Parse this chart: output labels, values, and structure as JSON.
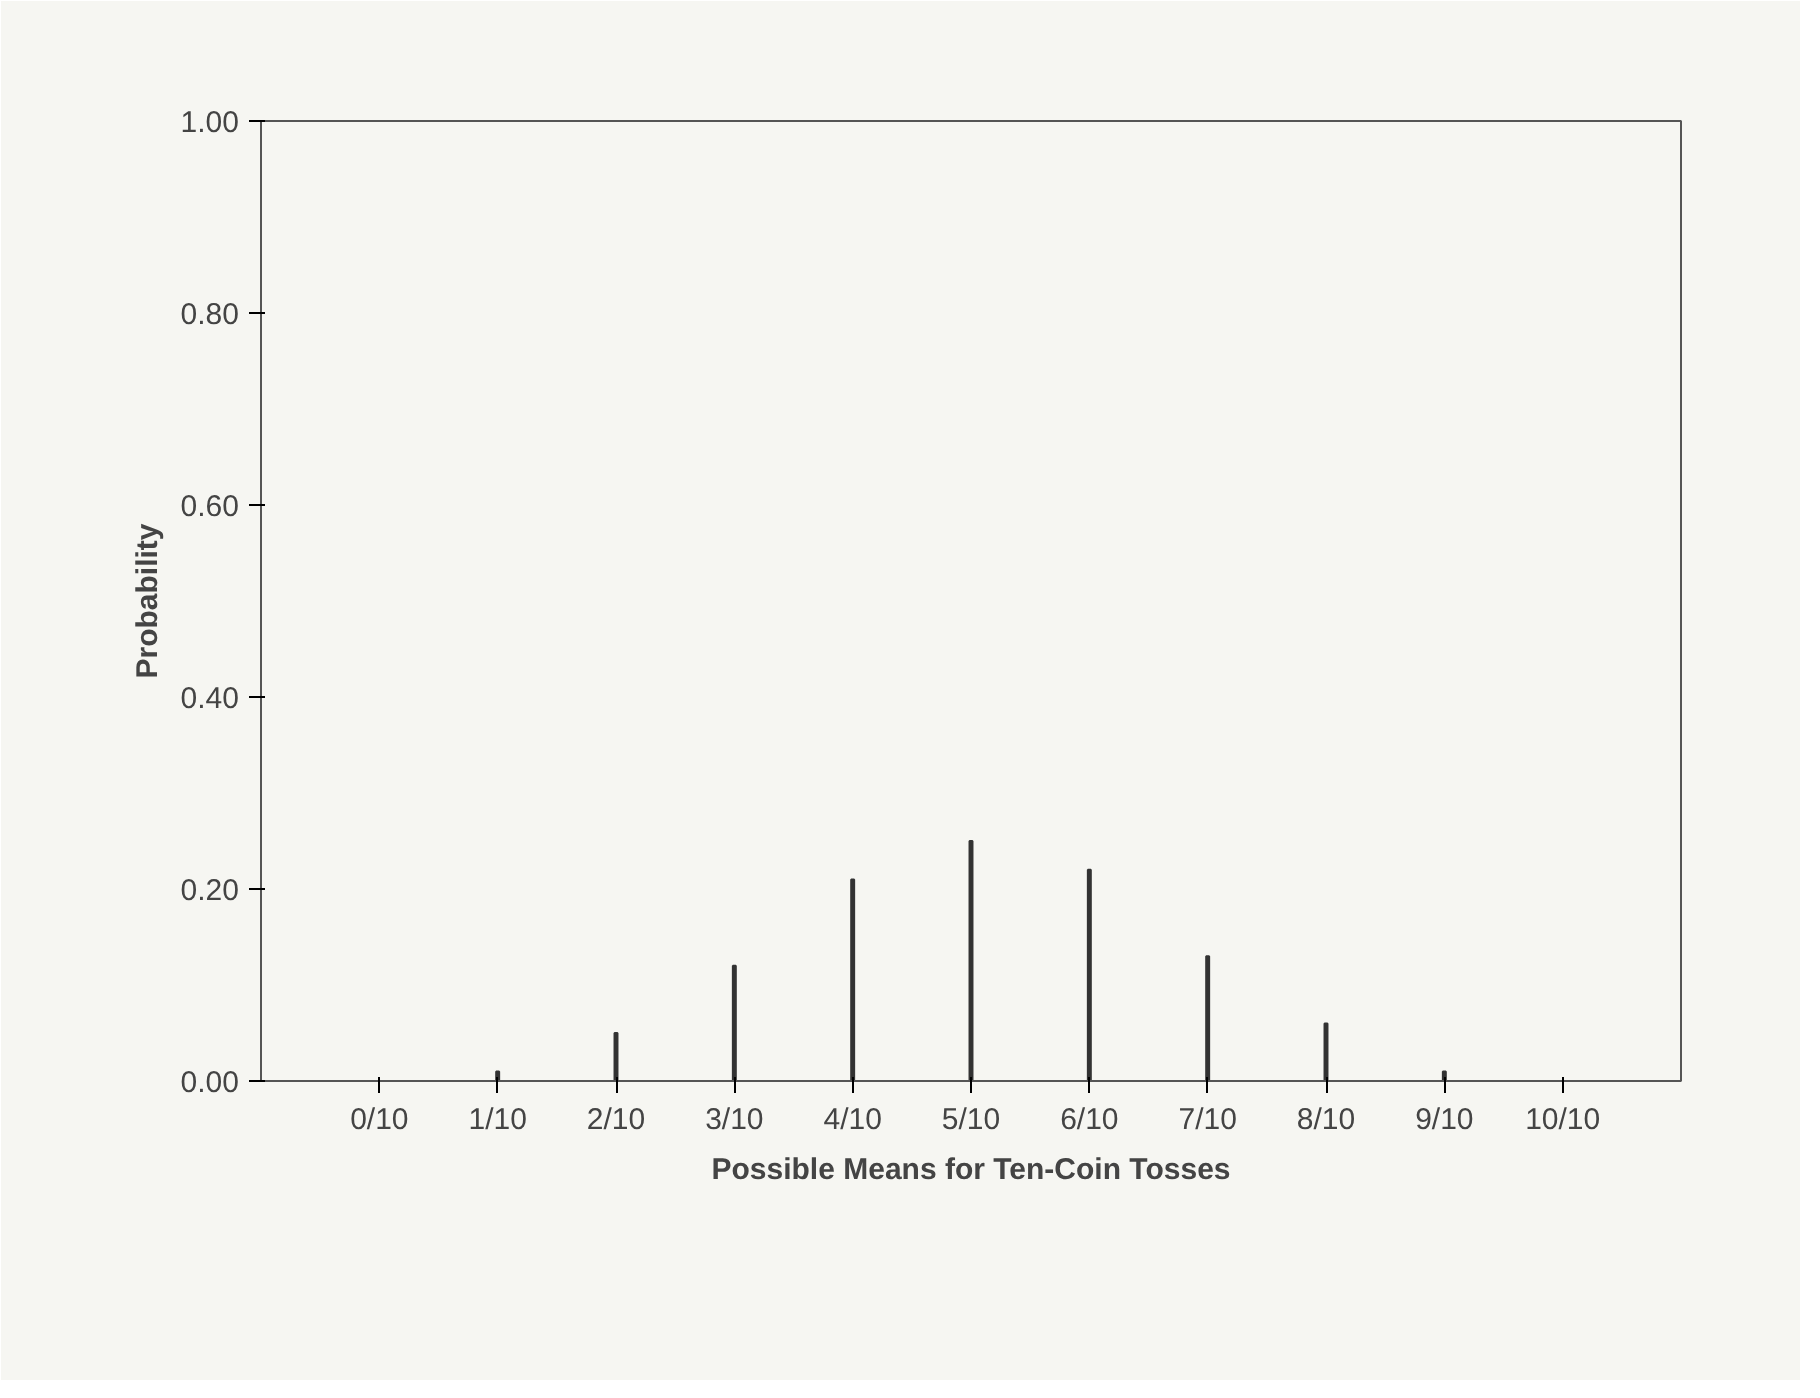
{
  "chart_data": {
    "type": "bar",
    "xlabel": "Possible Means for Ten-Coin Tosses",
    "ylabel": "Probability",
    "categories": [
      "0/10",
      "1/10",
      "2/10",
      "3/10",
      "4/10",
      "5/10",
      "6/10",
      "7/10",
      "8/10",
      "9/10",
      "10/10"
    ],
    "values": [
      0.0,
      0.01,
      0.05,
      0.12,
      0.21,
      0.25,
      0.22,
      0.13,
      0.06,
      0.01,
      0.0
    ],
    "color": "#333333",
    "ylim": [
      0,
      1
    ],
    "yticks": [
      {
        "value": 0,
        "label": "0.00"
      },
      {
        "value": 0.2,
        "label": "0.20"
      },
      {
        "value": 0.4,
        "label": "0.40"
      },
      {
        "value": 0.6,
        "label": "0.60"
      },
      {
        "value": 0.8,
        "label": "0.80"
      },
      {
        "value": 1,
        "label": "1.00"
      }
    ],
    "grid": false
  }
}
